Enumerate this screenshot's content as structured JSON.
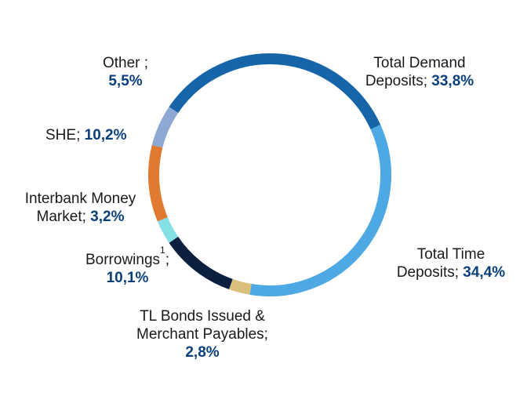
{
  "chart_data": {
    "type": "pie",
    "style": "donut",
    "title": "",
    "slices": [
      {
        "name": "Total Demand Deposits",
        "value": 33.8,
        "value_label": "33,8%",
        "color": "#1565a8"
      },
      {
        "name": "Total Time Deposits",
        "value": 34.4,
        "value_label": "34,4%",
        "color": "#4ea8e4"
      },
      {
        "name": "TL Bonds Issued & Merchant Payables",
        "value": 2.8,
        "value_label": "2,8%",
        "color": "#d9bf7a"
      },
      {
        "name": "Borrowings",
        "value": 10.1,
        "value_label": "10,1%",
        "color": "#0c1f40"
      },
      {
        "name": "Interbank Money Market",
        "value": 3.2,
        "value_label": "3,2%",
        "color": "#84e0e4"
      },
      {
        "name": "SHE",
        "value": 10.2,
        "value_label": "10,2%",
        "color": "#e07a30"
      },
      {
        "name": "Other",
        "value": 5.5,
        "value_label": "5,5%",
        "color": "#8ea8d4"
      }
    ]
  },
  "labels": {
    "demand": {
      "line1": "Total Demand",
      "line2_text": "Deposits; ",
      "value": "33,8%"
    },
    "time": {
      "line1": "Total Time",
      "line2_text": "Deposits; ",
      "value": "34,4%"
    },
    "bonds": {
      "line1": "TL Bonds Issued &",
      "line2": "Merchant Payables;",
      "value": "2,8%"
    },
    "borrowings": {
      "line1_text": "Borrowings",
      "superscript": "1",
      "line1_suffix": ";",
      "value": "10,1%"
    },
    "interbank": {
      "line1": "Interbank Money",
      "line2_text": "Market; ",
      "value": "3,2%"
    },
    "she": {
      "text": "SHE; ",
      "value": "10,2%"
    },
    "other": {
      "line1": "Other ;",
      "value": "5,5%"
    }
  }
}
